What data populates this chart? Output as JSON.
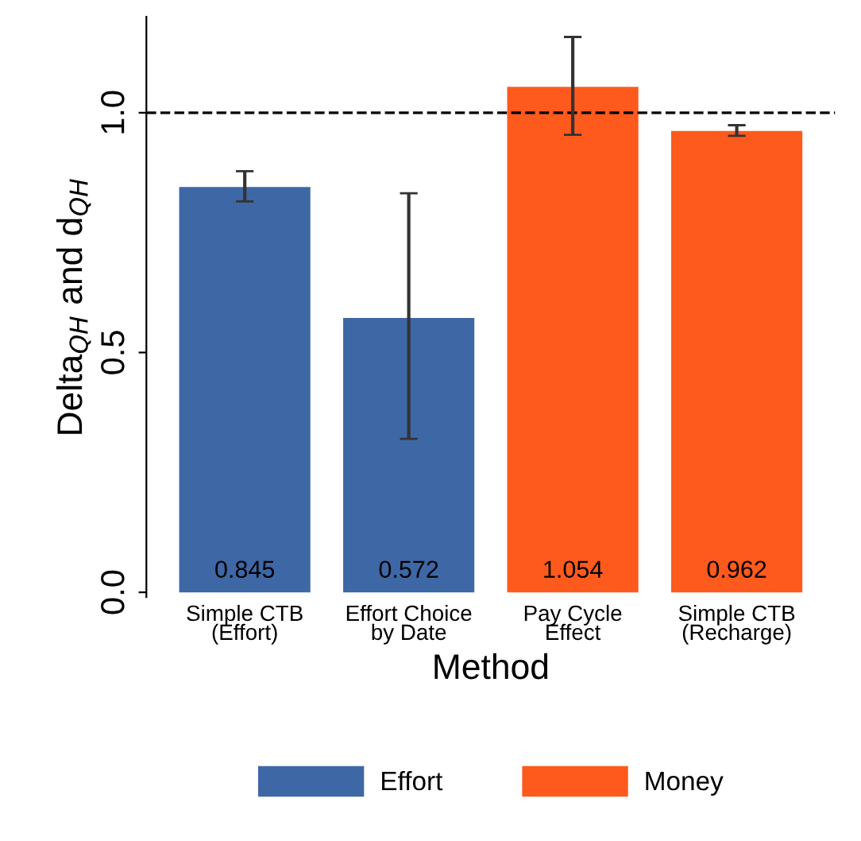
{
  "chart_data": {
    "type": "bar",
    "xlabel": "Method",
    "ylabel": "Delta$_{QH}$ and d$_{QH}$",
    "categories": [
      "Simple CTB\n(Effort)",
      "Effort Choice\nby Date",
      "Pay Cycle\nEffect",
      "Simple CTB\n(Recharge)"
    ],
    "series": [
      {
        "name": "Effort",
        "color": "#3e67a6",
        "values": [
          0.845,
          0.572,
          null,
          null
        ],
        "errors": [
          [
            0.815,
            0.878
          ],
          [
            0.32,
            0.832
          ],
          null,
          null
        ]
      },
      {
        "name": "Money",
        "color": "#fe5a1d",
        "values": [
          null,
          null,
          1.054,
          0.962
        ],
        "errors": [
          null,
          null,
          [
            0.954,
            1.158
          ],
          [
            0.952,
            0.974
          ]
        ]
      }
    ],
    "ylim": [
      -0.01,
      1.2
    ],
    "yticks": [
      {
        "value": 0,
        "label": "0.0"
      },
      {
        "value": 0.5,
        "label": "0.5"
      },
      {
        "value": 1,
        "label": "1.0"
      }
    ],
    "ref_lines": [
      {
        "axis": "y",
        "value": 1,
        "line_style": "dashed",
        "color": "#000000"
      }
    ],
    "data_labels": true,
    "legend": "bottom",
    "grid": false
  }
}
